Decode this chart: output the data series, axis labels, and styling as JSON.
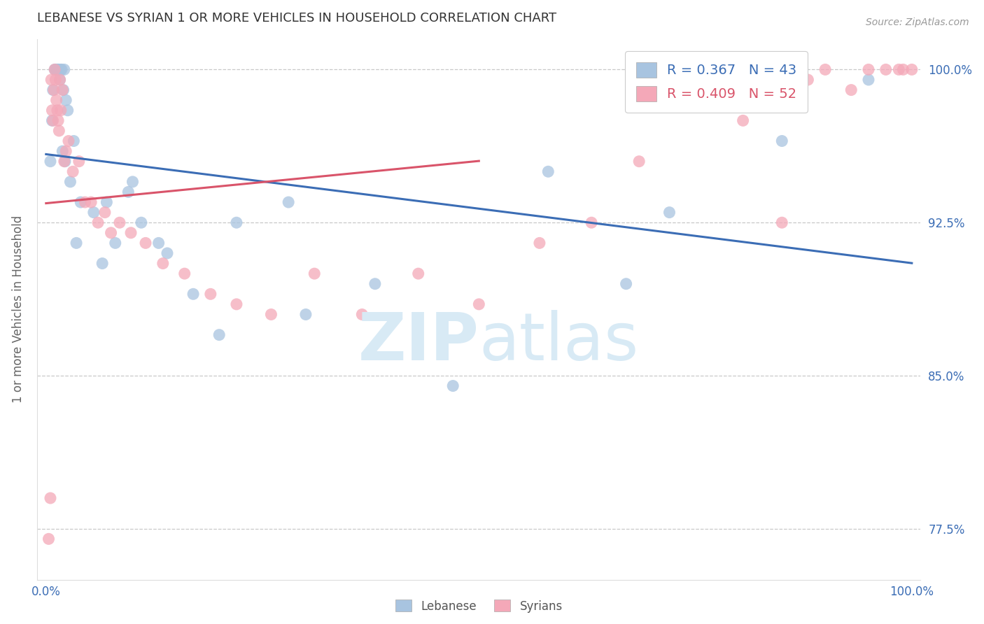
{
  "title": "LEBANESE VS SYRIAN 1 OR MORE VEHICLES IN HOUSEHOLD CORRELATION CHART",
  "source": "Source: ZipAtlas.com",
  "ylabel": "1 or more Vehicles in Household",
  "xlim": [
    -1,
    101
  ],
  "ylim": [
    75.0,
    101.5
  ],
  "yticks": [
    77.5,
    85.0,
    92.5,
    100.0
  ],
  "xtick_vals": [
    0,
    100
  ],
  "xtick_labels": [
    "0.0%",
    "100.0%"
  ],
  "blue_color": "#A8C4E0",
  "pink_color": "#F4A8B8",
  "trend_blue": "#3B6DB5",
  "trend_pink": "#D9546A",
  "axis_color": "#3B6DB5",
  "grid_color": "#C8C8C8",
  "title_color": "#333333",
  "source_color": "#999999",
  "ylabel_color": "#666666",
  "watermark_color": "#D8EAF5",
  "label_blue": "Lebanese",
  "label_pink": "Syrians",
  "legend_blue_r": "R = 0.367",
  "legend_blue_n": "N = 43",
  "legend_pink_r": "R = 0.409",
  "legend_pink_n": "N = 52",
  "blue_x": [
    0.5,
    0.7,
    0.8,
    1.0,
    1.1,
    1.2,
    1.3,
    1.4,
    1.5,
    1.6,
    1.7,
    1.8,
    2.0,
    2.1,
    2.3,
    2.5,
    2.8,
    3.2,
    4.0,
    5.5,
    6.5,
    8.0,
    9.5,
    11.0,
    14.0,
    17.0,
    22.0,
    30.0,
    38.0,
    47.0,
    58.0,
    67.0,
    72.0,
    85.0,
    95.0,
    28.0,
    20.0,
    10.0,
    7.0,
    3.5,
    2.2,
    1.9,
    13.0
  ],
  "blue_y": [
    95.5,
    97.5,
    99.0,
    100.0,
    100.0,
    100.0,
    100.0,
    100.0,
    100.0,
    99.5,
    100.0,
    100.0,
    99.0,
    100.0,
    98.5,
    98.0,
    94.5,
    96.5,
    93.5,
    93.0,
    90.5,
    91.5,
    94.0,
    92.5,
    91.0,
    89.0,
    92.5,
    88.0,
    89.5,
    84.5,
    95.0,
    89.5,
    93.0,
    96.5,
    99.5,
    93.5,
    87.0,
    94.5,
    93.5,
    91.5,
    95.5,
    96.0,
    91.5
  ],
  "pink_x": [
    0.3,
    0.5,
    0.6,
    0.7,
    0.8,
    0.9,
    1.0,
    1.1,
    1.2,
    1.3,
    1.4,
    1.5,
    1.6,
    1.7,
    1.9,
    2.1,
    2.3,
    2.6,
    3.1,
    3.8,
    4.5,
    5.2,
    6.0,
    6.8,
    7.5,
    8.5,
    9.8,
    11.5,
    13.5,
    16.0,
    19.0,
    22.0,
    26.0,
    31.0,
    36.5,
    43.0,
    50.0,
    57.0,
    63.0,
    68.5,
    72.0,
    76.0,
    80.5,
    85.0,
    88.0,
    90.0,
    93.0,
    95.0,
    97.0,
    98.5,
    99.0,
    100.0
  ],
  "pink_y": [
    77.0,
    79.0,
    99.5,
    98.0,
    97.5,
    99.0,
    100.0,
    99.5,
    98.5,
    98.0,
    97.5,
    97.0,
    99.5,
    98.0,
    99.0,
    95.5,
    96.0,
    96.5,
    95.0,
    95.5,
    93.5,
    93.5,
    92.5,
    93.0,
    92.0,
    92.5,
    92.0,
    91.5,
    90.5,
    90.0,
    89.0,
    88.5,
    88.0,
    90.0,
    88.0,
    90.0,
    88.5,
    91.5,
    92.5,
    95.5,
    99.5,
    100.0,
    97.5,
    92.5,
    99.5,
    100.0,
    99.0,
    100.0,
    100.0,
    100.0,
    100.0,
    100.0
  ],
  "trend_blue_x0": 0,
  "trend_blue_x1": 100,
  "trend_pink_x0": 0,
  "trend_pink_x1": 50
}
